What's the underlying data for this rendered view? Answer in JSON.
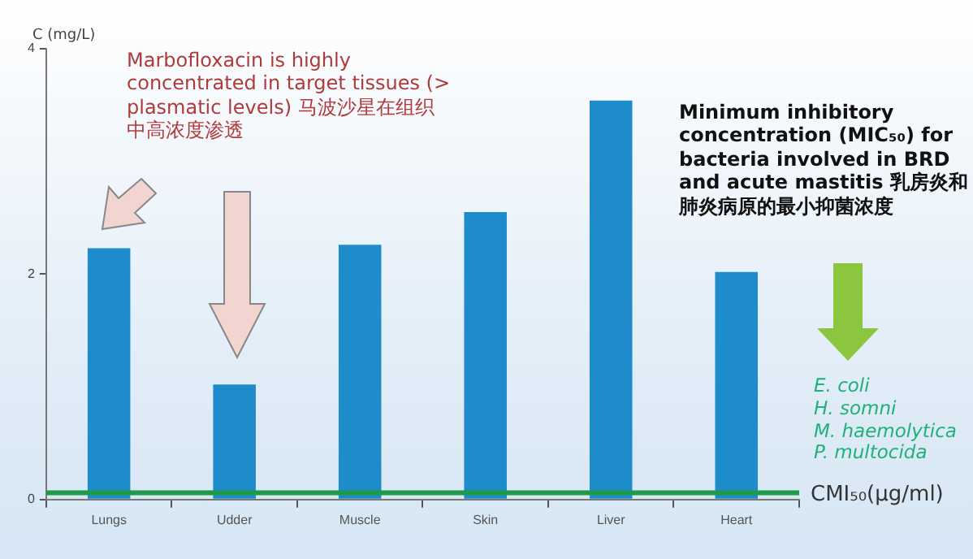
{
  "chart_data": {
    "type": "bar",
    "ylabel": "C (mg/L)",
    "categories": [
      "Lungs",
      "Udder",
      "Muscle",
      "Skin",
      "Liver",
      "Heart"
    ],
    "values": [
      2.23,
      1.02,
      2.26,
      2.55,
      3.54,
      2.02
    ],
    "color": "#1e8ccb",
    "ylim": [
      0,
      4
    ],
    "yticks": [
      0,
      2,
      4
    ],
    "ref_lines": [
      {
        "axis": "y",
        "value": 0.06,
        "label": "CMI₅₀(μg/ml)",
        "color": "#1f9a4a"
      }
    ],
    "annotations": [
      "Marbofloxacin is highly concentrated in target tissues (> plasmatic levels) 马波沙星在组织中高浓度渗透",
      "Minimum inhibitory concentration (MIC₅₀) for bacteria involved in BRD and acute mastitis 乳房炎和肺炎病原的最小抑菌浓度",
      "E. coli",
      "H. somni",
      "M. haemolytica",
      "P. multocida"
    ]
  }
}
